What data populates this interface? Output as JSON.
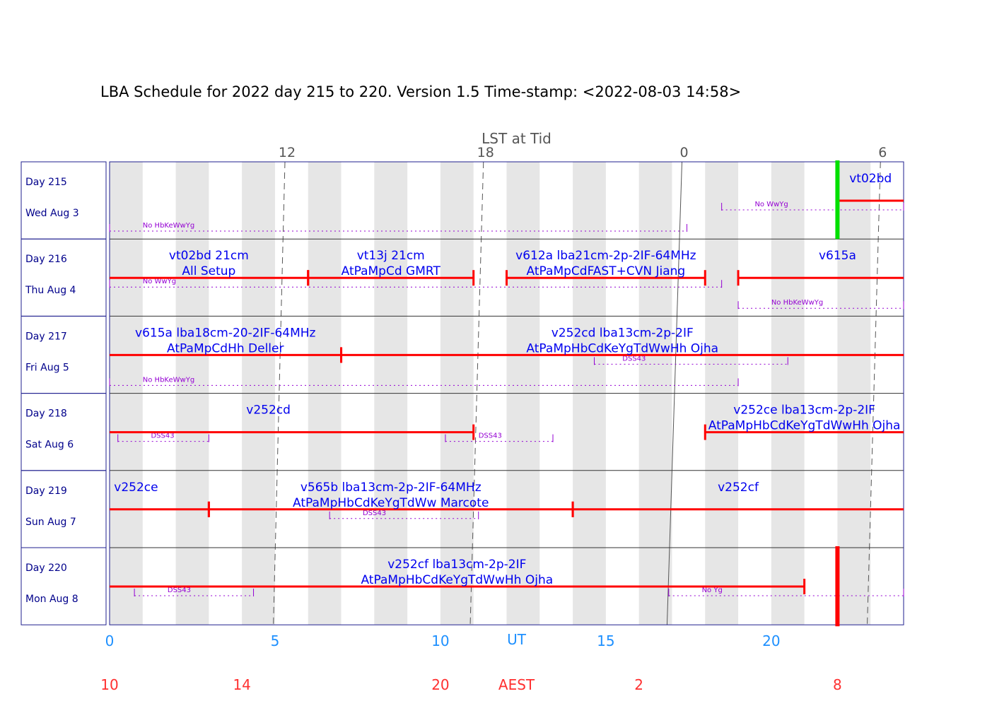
{
  "title": "LBA Schedule for 2022 day 215 to 220. Version 1.5 Time-stamp: <2022-08-03 14:58>",
  "colors": {
    "experiment": "#ff0000",
    "now_marker": "#00e000",
    "experiment_text": "#0000ee",
    "outage": "#9400d3",
    "day_label": "#00008b",
    "grid_shade": "#e6e6e6",
    "ut_axis": "#1e90ff",
    "aest_axis": "#ff3030",
    "lst_axis": "#555555"
  },
  "chart_data": {
    "type": "schedule",
    "title": "LBA Schedule for 2022 day 215 to 220. Version 1.5 Time-stamp: <2022-08-03 14:58>",
    "xlim": [
      0,
      24
    ],
    "ut_axis": {
      "label": "UT",
      "ticks": [
        0,
        5,
        10,
        15,
        20
      ]
    },
    "aest_axis": {
      "label": "AEST",
      "ticks": [
        {
          "ut": 0,
          "label": "10"
        },
        {
          "ut": 4,
          "label": "14"
        },
        {
          "ut": 10,
          "label": "20"
        },
        {
          "ut": 16,
          "label": "2"
        },
        {
          "ut": 22,
          "label": "8"
        }
      ]
    },
    "lst_axis": {
      "label": "LST at Tid",
      "ticks": [
        {
          "label": "12",
          "ut_day215": 5.3,
          "ut_day220": 4.95,
          "style": "dashed"
        },
        {
          "label": "18",
          "ut_day215": 11.3,
          "ut_day220": 10.9,
          "style": "dashed"
        },
        {
          "label": "0",
          "ut_day215": 17.3,
          "ut_day220": 16.85,
          "style": "solid"
        },
        {
          "label": "6",
          "ut_day215": 23.3,
          "ut_day220": 22.9,
          "style": "dashed"
        }
      ]
    },
    "rows": [
      {
        "day": "Day 215",
        "date": "Wed Aug 3",
        "experiments": [
          {
            "start": 22.0,
            "end": 24.0,
            "label1": "vt02bd",
            "label2": "",
            "lx": 23.0,
            "cont_start": false,
            "cont_end": true
          }
        ],
        "outages": [
          {
            "start": 0.0,
            "end": 17.45,
            "label": "No HbKeWwYg",
            "lx": 1.0,
            "lane": 2
          },
          {
            "start": 18.5,
            "end": 24.0,
            "label": "No WwYg",
            "lx": 19.5,
            "lane": 1
          }
        ]
      },
      {
        "day": "Day 216",
        "date": "Thu Aug 4",
        "experiments": [
          {
            "start": 0.0,
            "end": 6.0,
            "label1": "vt02bd 21cm",
            "label2": "All Setup",
            "lx": 3.0,
            "cont_start": true,
            "cont_end": false
          },
          {
            "start": 6.0,
            "end": 11.0,
            "label1": "vt13j 21cm",
            "label2": "AtPaMpCd GMRT",
            "lx": 8.5,
            "cont_start": false,
            "cont_end": false
          },
          {
            "start": 12.0,
            "end": 18.0,
            "label1": "v612a lba21cm-2p-2IF-64MHz",
            "label2": "AtPaMpCdFAST+CVN Jiang",
            "lx": 15.0,
            "cont_start": false,
            "cont_end": false
          },
          {
            "start": 19.0,
            "end": 24.0,
            "label1": "v615a",
            "label2": "",
            "lx": 22.0,
            "cont_start": false,
            "cont_end": true
          }
        ],
        "outages": [
          {
            "start": 0.0,
            "end": 18.5,
            "label": "No WwYg",
            "lx": 1.0,
            "lane": 1
          },
          {
            "start": 19.0,
            "end": 24.0,
            "label": "No HbKeWwYg",
            "lx": 20.0,
            "lane": 2
          }
        ]
      },
      {
        "day": "Day 217",
        "date": "Fri Aug 5",
        "experiments": [
          {
            "start": 0.0,
            "end": 7.0,
            "label1": "v615a lba18cm-20-2IF-64MHz",
            "label2": "AtPaMpCdHh Deller",
            "lx": 3.5,
            "cont_start": true,
            "cont_end": false
          },
          {
            "start": 7.0,
            "end": 24.0,
            "label1": "v252cd lba13cm-2p-2IF",
            "label2": "AtPaMpHbCdKeYgTdWwHh Ojha",
            "lx": 15.5,
            "cont_start": false,
            "cont_end": true
          }
        ],
        "outages": [
          {
            "start": 0.0,
            "end": 19.0,
            "label": "No HbKeWwYg",
            "lx": 1.0,
            "lane": 2
          },
          {
            "start": 14.65,
            "end": 20.5,
            "label": "DSS43",
            "lx": 15.5,
            "lane": 1
          }
        ]
      },
      {
        "day": "Day 218",
        "date": "Sat Aug 6",
        "experiments": [
          {
            "start": 0.0,
            "end": 11.0,
            "label1": "v252cd",
            "label2": "",
            "lx": 4.8,
            "cont_start": true,
            "cont_end": false
          },
          {
            "start": 18.0,
            "end": 24.0,
            "label1": "v252ce lba13cm-2p-2IF",
            "label2": "AtPaMpHbCdKeYgTdWwHh Ojha",
            "lx": 21.0,
            "cont_start": false,
            "cont_end": true
          }
        ],
        "outages": [
          {
            "start": 0.25,
            "end": 3.0,
            "label": "DSS43",
            "lx": 1.25,
            "lane": 1
          },
          {
            "start": 10.15,
            "end": 13.4,
            "label": "DSS43",
            "lx": 11.15,
            "lane": 1
          }
        ]
      },
      {
        "day": "Day 219",
        "date": "Sun Aug 7",
        "experiments": [
          {
            "start": 0.0,
            "end": 3.0,
            "label1": "v252ce",
            "label2": "",
            "lx": 0.8,
            "cont_start": true,
            "cont_end": false
          },
          {
            "start": 3.0,
            "end": 14.0,
            "label1": "v565b lba13cm-2p-2IF-64MHz",
            "label2": "AtPaMpHbCdKeYgTdWw Marcote",
            "lx": 8.5,
            "cont_start": false,
            "cont_end": false
          },
          {
            "start": 14.0,
            "end": 24.0,
            "label1": "v252cf",
            "label2": "",
            "lx": 19.0,
            "cont_start": false,
            "cont_end": true
          }
        ],
        "outages": [
          {
            "start": 6.65,
            "end": 11.15,
            "label": "DSS43",
            "lx": 7.65,
            "lane": 1
          }
        ]
      },
      {
        "day": "Day 220",
        "date": "Mon Aug 8",
        "experiments": [
          {
            "start": 0.0,
            "end": 21.0,
            "label1": "v252cf lba13cm-2p-2IF",
            "label2": "AtPaMpHbCdKeYgTdWwHh Ojha",
            "lx": 10.5,
            "cont_start": true,
            "cont_end": false
          }
        ],
        "outages": [
          {
            "start": 0.75,
            "end": 4.35,
            "label": "DSS43",
            "lx": 1.75,
            "lane": 1
          },
          {
            "start": 16.9,
            "end": 24.0,
            "label": "No Yg",
            "lx": 17.9,
            "lane": 1
          }
        ]
      }
    ],
    "now_marker": {
      "ut": 22.0,
      "row_start": 0,
      "row_end": 0
    },
    "end_marker": {
      "ut": 22.0,
      "row": 5
    }
  }
}
